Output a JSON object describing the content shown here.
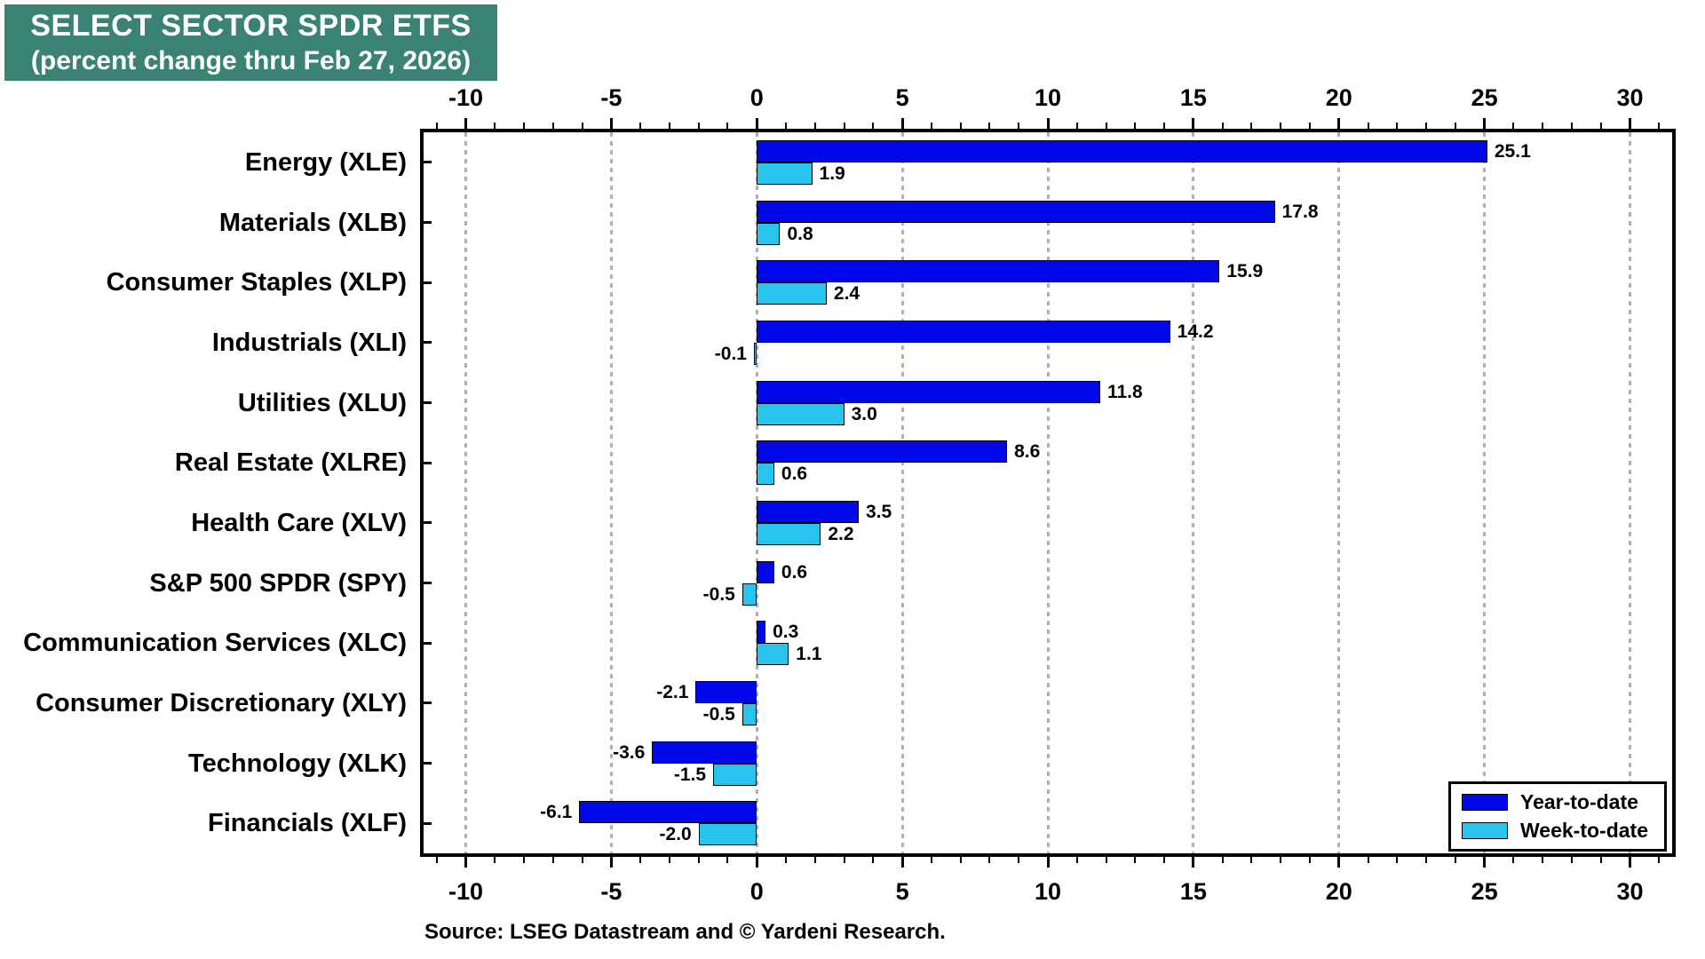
{
  "header": {
    "title_line1": "SELECT SECTOR SPDR ETFS",
    "title_line2": "(percent change thru Feb 27, 2026)",
    "title_bg_color": "#3a8273",
    "title_text_color": "#ffffff"
  },
  "source": {
    "text": "Source: LSEG Datastream and © Yardeni Research."
  },
  "chart_data": {
    "type": "bar",
    "orientation": "horizontal",
    "title": "SELECT SECTOR SPDR ETFS (percent change thru Feb 27, 2026)",
    "categories": [
      "Energy (XLE)",
      "Materials (XLB)",
      "Consumer Staples (XLP)",
      "Industrials (XLI)",
      "Utilities (XLU)",
      "Real Estate (XLRE)",
      "Health Care (XLV)",
      "S&P 500 SPDR (SPY)",
      "Communication Services (XLC)",
      "Consumer Discretionary (XLY)",
      "Technology (XLK)",
      "Financials (XLF)"
    ],
    "series": [
      {
        "name": "Year-to-date",
        "color": "#0008e8",
        "values": [
          25.1,
          17.8,
          15.9,
          14.2,
          11.8,
          8.6,
          3.5,
          0.6,
          0.3,
          -2.1,
          -3.6,
          -6.1
        ]
      },
      {
        "name": "Week-to-date",
        "color": "#29c4ee",
        "values": [
          1.9,
          0.8,
          2.4,
          -0.1,
          3.0,
          0.6,
          2.2,
          -0.5,
          1.1,
          -0.5,
          -1.5,
          -2.0
        ]
      }
    ],
    "xlabel": "",
    "ylabel": "",
    "xlim": [
      -11.45,
      31.45
    ],
    "major_ticks": [
      -10,
      -5,
      0,
      5,
      10,
      15,
      20,
      25,
      30
    ],
    "minor_tick_step": 1,
    "grid": "vertical-dotted-at-major-ticks",
    "gridline_color": "#b0b0b0",
    "bar_border_color": "#000000",
    "value_labels_shown": true,
    "value_label_decimals": 1,
    "axis_tick_labels_position": "top-and-bottom",
    "legend_position": "bottom-right"
  }
}
